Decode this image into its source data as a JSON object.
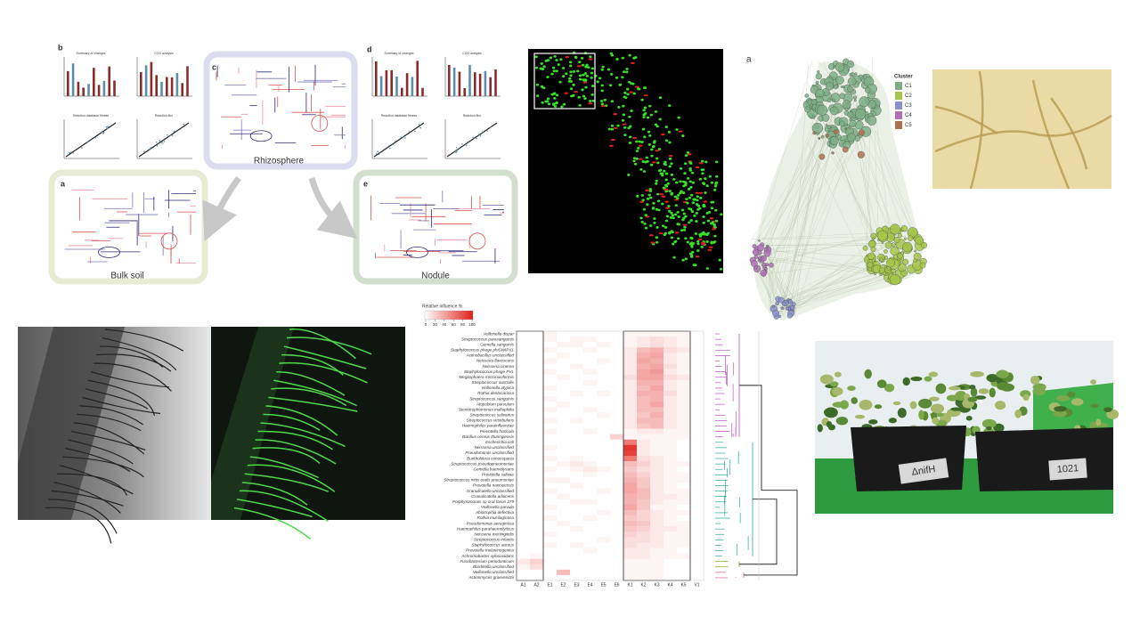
{
  "figure_pathways": {
    "panels": [
      "b",
      "c",
      "d",
      "a",
      "e"
    ],
    "labels": {
      "rhizosphere": "Rhizosphere",
      "bulk_soil": "Bulk soil",
      "nodule": "Nodule"
    },
    "chart_titles": [
      "Summary of changes",
      "COG analysis",
      "Reaction database fitness",
      "Reaction flux"
    ]
  },
  "network": {
    "panel": "a",
    "legend_title": "Cluster",
    "clusters": [
      {
        "name": "C1",
        "color": "#7fae86"
      },
      {
        "name": "C2",
        "color": "#a6c64a"
      },
      {
        "name": "C3",
        "color": "#8a8fd0"
      },
      {
        "name": "C4",
        "color": "#b070b8"
      },
      {
        "name": "C5",
        "color": "#b07050"
      }
    ]
  },
  "heatmap": {
    "legend_title": "Relative influence %",
    "legend_ticks": [
      0,
      20,
      40,
      60,
      80,
      100
    ],
    "columns": [
      "A1",
      "A2",
      "E1",
      "E2",
      "E3",
      "E4",
      "E5",
      "E6",
      "K1",
      "K2",
      "K3",
      "K4",
      "K5",
      "V1"
    ],
    "rows": [
      "Veillonella dispar",
      "Streptococcus parasanguinis",
      "Gemella sanguinis",
      "Staphylococcus phage phiSWIPV1",
      "Actinobacillus unclassified",
      "Neisseria flavescens",
      "Neisseria cinerea",
      "Staphylococcus phage PVL",
      "Megasphaera micronuciformis",
      "Streptococcus australis",
      "Veillonella atypica",
      "Rothia dentocariosa",
      "Streptococcus sanguinis",
      "Atopobium parvulum",
      "Stenotrophomonas maltophilia",
      "Streptococcus salivarius",
      "Streptococcus vestibularis",
      "Haemophilus parainfluenzae",
      "Prevotella histicola",
      "Bacillus cereus thuringiensis",
      "Escherichia coli",
      "Neisseria unclassified",
      "Pseudomonas unclassified",
      "Burkholderia cenocepacia",
      "Streptococcus pseudopneumoniae",
      "Gemella haemolysans",
      "Prevotella salivae",
      "Streptococcus mitis oralis pneumoniae",
      "Prevotella nanceiensis",
      "Granulicatella unclassified",
      "Granulicatella adiacens",
      "Porphyromonas sp oral taxon 279",
      "Veillonella parvula",
      "Abiotrophia defectiva",
      "Rothia mucilaginosa",
      "Pseudomonas aeruginosa",
      "Haemophilus parahaemolyticus",
      "Neisseria meningitidis",
      "Streptococcus infantis",
      "Staphylococcus aureus",
      "Prevotella melaninogenica",
      "Achromobacter xylosoxidans",
      "Fusobacterium periodonticum",
      "Bordetella unclassified",
      "Veillonella unclassified",
      "Actinomyces graevenitzii"
    ],
    "values": [
      [
        0,
        0,
        5,
        0,
        0,
        0,
        0,
        0,
        5,
        5,
        5,
        5,
        5,
        0
      ],
      [
        0,
        0,
        5,
        0,
        5,
        5,
        0,
        0,
        5,
        10,
        15,
        10,
        5,
        0
      ],
      [
        0,
        0,
        0,
        5,
        5,
        0,
        5,
        0,
        5,
        10,
        15,
        10,
        5,
        0
      ],
      [
        0,
        0,
        5,
        0,
        0,
        5,
        0,
        0,
        10,
        30,
        35,
        15,
        10,
        0
      ],
      [
        0,
        0,
        0,
        5,
        0,
        0,
        0,
        0,
        10,
        35,
        40,
        10,
        5,
        0
      ],
      [
        0,
        0,
        5,
        0,
        0,
        0,
        5,
        0,
        10,
        40,
        35,
        10,
        5,
        0
      ],
      [
        0,
        0,
        0,
        0,
        5,
        0,
        0,
        0,
        10,
        35,
        40,
        15,
        5,
        0
      ],
      [
        0,
        0,
        5,
        0,
        0,
        5,
        0,
        0,
        10,
        40,
        45,
        10,
        5,
        0
      ],
      [
        0,
        0,
        0,
        5,
        0,
        0,
        0,
        0,
        15,
        40,
        40,
        15,
        10,
        0
      ],
      [
        0,
        0,
        0,
        0,
        0,
        5,
        0,
        0,
        10,
        35,
        35,
        10,
        5,
        0
      ],
      [
        0,
        0,
        5,
        0,
        0,
        0,
        0,
        0,
        10,
        30,
        40,
        10,
        5,
        0
      ],
      [
        0,
        0,
        0,
        0,
        5,
        0,
        5,
        0,
        10,
        35,
        35,
        15,
        5,
        0
      ],
      [
        0,
        0,
        5,
        0,
        0,
        0,
        0,
        0,
        10,
        30,
        35,
        10,
        5,
        0
      ],
      [
        0,
        0,
        0,
        5,
        0,
        0,
        0,
        0,
        10,
        30,
        40,
        10,
        5,
        0
      ],
      [
        0,
        0,
        5,
        0,
        0,
        5,
        0,
        0,
        10,
        30,
        30,
        10,
        5,
        0
      ],
      [
        0,
        0,
        0,
        0,
        0,
        0,
        5,
        0,
        10,
        25,
        35,
        10,
        5,
        0
      ],
      [
        0,
        0,
        5,
        0,
        5,
        0,
        0,
        0,
        10,
        30,
        30,
        10,
        5,
        0
      ],
      [
        0,
        0,
        0,
        0,
        0,
        0,
        0,
        0,
        10,
        25,
        30,
        10,
        5,
        0
      ],
      [
        0,
        0,
        5,
        0,
        0,
        5,
        0,
        0,
        5,
        10,
        10,
        5,
        5,
        0
      ],
      [
        0,
        0,
        0,
        0,
        0,
        0,
        0,
        20,
        5,
        5,
        5,
        5,
        5,
        0
      ],
      [
        0,
        0,
        0,
        0,
        0,
        0,
        0,
        0,
        60,
        10,
        5,
        5,
        0,
        0
      ],
      [
        0,
        0,
        5,
        0,
        0,
        0,
        0,
        0,
        90,
        10,
        5,
        5,
        0,
        0
      ],
      [
        0,
        0,
        0,
        0,
        0,
        0,
        0,
        0,
        85,
        10,
        5,
        5,
        0,
        0
      ],
      [
        0,
        0,
        5,
        0,
        5,
        0,
        0,
        0,
        60,
        15,
        10,
        5,
        0,
        0
      ],
      [
        0,
        0,
        0,
        5,
        10,
        5,
        0,
        0,
        30,
        20,
        10,
        5,
        5,
        0
      ],
      [
        0,
        0,
        5,
        0,
        5,
        10,
        5,
        0,
        25,
        15,
        10,
        5,
        0,
        0
      ],
      [
        0,
        0,
        0,
        0,
        0,
        5,
        0,
        0,
        30,
        20,
        10,
        5,
        5,
        0
      ],
      [
        0,
        0,
        5,
        5,
        0,
        0,
        0,
        0,
        35,
        25,
        10,
        5,
        5,
        0
      ],
      [
        0,
        0,
        0,
        0,
        5,
        0,
        0,
        0,
        40,
        25,
        10,
        5,
        0,
        0
      ],
      [
        0,
        0,
        5,
        0,
        0,
        0,
        5,
        0,
        40,
        30,
        10,
        5,
        5,
        0
      ],
      [
        0,
        0,
        0,
        5,
        0,
        0,
        0,
        0,
        35,
        30,
        10,
        10,
        5,
        0
      ],
      [
        0,
        0,
        0,
        0,
        5,
        5,
        0,
        0,
        35,
        25,
        10,
        5,
        5,
        0
      ],
      [
        0,
        0,
        5,
        0,
        0,
        0,
        0,
        0,
        40,
        25,
        5,
        5,
        0,
        0
      ],
      [
        0,
        0,
        0,
        0,
        0,
        0,
        5,
        0,
        30,
        20,
        10,
        5,
        5,
        0
      ],
      [
        0,
        0,
        5,
        0,
        0,
        5,
        0,
        0,
        25,
        20,
        10,
        5,
        0,
        0
      ],
      [
        0,
        0,
        0,
        5,
        0,
        0,
        0,
        0,
        30,
        25,
        10,
        5,
        5,
        0
      ],
      [
        0,
        0,
        0,
        0,
        5,
        0,
        0,
        0,
        25,
        20,
        10,
        10,
        5,
        0
      ],
      [
        0,
        0,
        5,
        0,
        0,
        0,
        0,
        0,
        20,
        15,
        10,
        5,
        5,
        0
      ],
      [
        0,
        0,
        0,
        0,
        0,
        0,
        5,
        0,
        15,
        15,
        10,
        5,
        5,
        0
      ],
      [
        0,
        0,
        5,
        0,
        5,
        0,
        0,
        0,
        15,
        10,
        10,
        5,
        5,
        0
      ],
      [
        0,
        0,
        0,
        0,
        0,
        5,
        0,
        0,
        10,
        10,
        5,
        5,
        0,
        0
      ],
      [
        0,
        5,
        0,
        0,
        0,
        0,
        0,
        0,
        10,
        10,
        5,
        5,
        5,
        0
      ],
      [
        10,
        20,
        0,
        0,
        0,
        0,
        0,
        0,
        5,
        5,
        5,
        0,
        0,
        0
      ],
      [
        5,
        15,
        0,
        0,
        0,
        0,
        0,
        0,
        5,
        5,
        5,
        0,
        0,
        0
      ],
      [
        0,
        0,
        0,
        30,
        0,
        0,
        0,
        0,
        5,
        5,
        5,
        0,
        0,
        0
      ],
      [
        0,
        0,
        0,
        0,
        0,
        0,
        0,
        0,
        5,
        5,
        5,
        0,
        0,
        0
      ]
    ]
  },
  "photo": {
    "labels": [
      "ΔnifH",
      "1021"
    ]
  }
}
